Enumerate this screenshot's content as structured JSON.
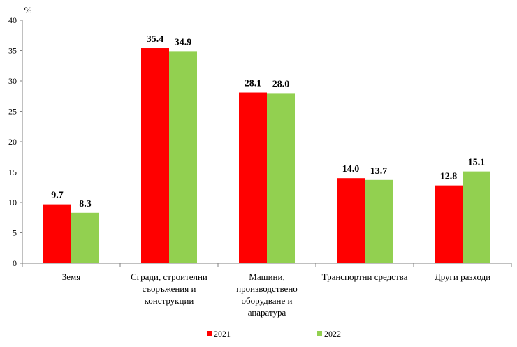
{
  "chart_data": {
    "type": "bar",
    "unit_label": "%",
    "categories": [
      [
        "Земя"
      ],
      [
        "Сгради, строителни",
        "съоръжения и",
        "конструкции"
      ],
      [
        "Машини,",
        "производствено",
        "оборудване и",
        "апаратура"
      ],
      [
        "Транспортни  средства"
      ],
      [
        "Други разходи"
      ]
    ],
    "series": [
      {
        "name": "2021",
        "color": "#ff0000",
        "values": [
          9.7,
          35.4,
          28.1,
          14.0,
          12.8
        ]
      },
      {
        "name": "2022",
        "color": "#92d050",
        "values": [
          8.3,
          34.9,
          28.0,
          13.7,
          15.1
        ]
      }
    ],
    "data_labels": [
      [
        "9.7",
        "35.4",
        "28.1",
        "14.0",
        "12.8"
      ],
      [
        "8.3",
        "34.9",
        "28.0",
        "13.7",
        "15.1"
      ]
    ],
    "ylim": [
      0,
      40
    ],
    "yticks": [
      0,
      5,
      10,
      15,
      20,
      25,
      30,
      35,
      40
    ],
    "grid": false,
    "legend_position": "bottom"
  }
}
